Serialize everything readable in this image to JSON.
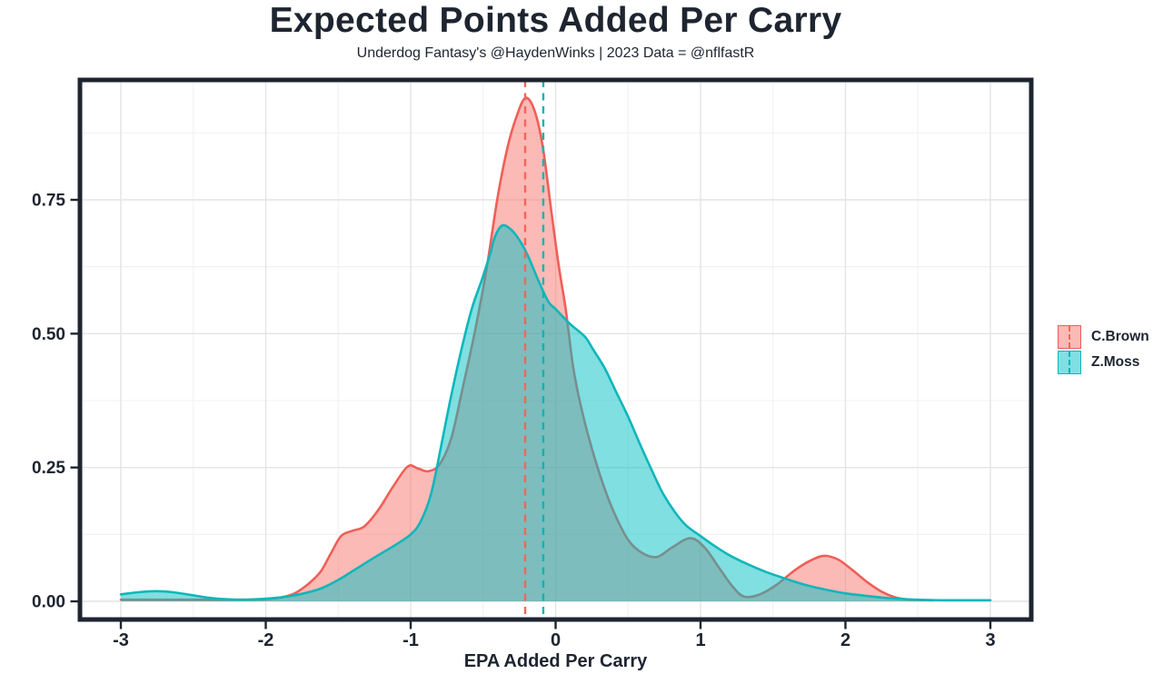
{
  "header": {
    "title": "Expected Points Added Per Carry",
    "subtitle": "Underdog Fantasy's @HaydenWinks | 2023 Data = @nflfastR"
  },
  "chart_data": {
    "type": "area",
    "subtype": "density",
    "title": "Expected Points Added Per Carry",
    "subtitle": "Underdog Fantasy's @HaydenWinks | 2023 Data = @nflfastR",
    "xlabel": "EPA Added Per Carry",
    "ylabel": "",
    "xlim": [
      -3.29,
      3.28
    ],
    "ylim": [
      -0.034,
      0.974
    ],
    "x_ticks": [
      -3,
      -2,
      -1,
      0,
      1,
      2,
      3
    ],
    "x_tick_labels": [
      "-3",
      "-2",
      "-1",
      "0",
      "1",
      "2",
      "3"
    ],
    "x_minor_ticks": [
      -2.5,
      -1.5,
      -0.5,
      0.5,
      1.5,
      2.5
    ],
    "y_ticks": [
      0,
      0.25,
      0.5,
      0.75
    ],
    "y_tick_labels": [
      "0.00",
      "0.25",
      "0.50",
      "0.75"
    ],
    "y_minor_ticks": [
      0.125,
      0.375,
      0.625,
      0.875
    ],
    "grid": true,
    "legend_position": "right",
    "series": [
      {
        "name": "C.Brown",
        "stroke": "#ef5f58",
        "fill": "rgba(248,118,109,0.5)",
        "legend_fill": "#fbbab6",
        "mean_line": {
          "x": -0.21,
          "color": "#f4655d"
        },
        "points": [
          [
            -3.0,
            0.003
          ],
          [
            -2.7,
            0.003
          ],
          [
            -2.4,
            0.003
          ],
          [
            -2.15,
            0.003
          ],
          [
            -2.0,
            0.004
          ],
          [
            -1.9,
            0.007
          ],
          [
            -1.8,
            0.015
          ],
          [
            -1.7,
            0.034
          ],
          [
            -1.62,
            0.056
          ],
          [
            -1.55,
            0.09
          ],
          [
            -1.48,
            0.122
          ],
          [
            -1.4,
            0.132
          ],
          [
            -1.32,
            0.14
          ],
          [
            -1.22,
            0.172
          ],
          [
            -1.12,
            0.215
          ],
          [
            -1.02,
            0.252
          ],
          [
            -0.95,
            0.248
          ],
          [
            -0.88,
            0.243
          ],
          [
            -0.8,
            0.256
          ],
          [
            -0.72,
            0.305
          ],
          [
            -0.64,
            0.4
          ],
          [
            -0.56,
            0.5
          ],
          [
            -0.48,
            0.615
          ],
          [
            -0.4,
            0.755
          ],
          [
            -0.33,
            0.85
          ],
          [
            -0.27,
            0.905
          ],
          [
            -0.21,
            0.94
          ],
          [
            -0.15,
            0.92
          ],
          [
            -0.09,
            0.852
          ],
          [
            -0.03,
            0.73
          ],
          [
            0.02,
            0.63
          ],
          [
            0.07,
            0.545
          ],
          [
            0.12,
            0.44
          ],
          [
            0.17,
            0.37
          ],
          [
            0.24,
            0.295
          ],
          [
            0.32,
            0.225
          ],
          [
            0.4,
            0.168
          ],
          [
            0.5,
            0.115
          ],
          [
            0.6,
            0.09
          ],
          [
            0.7,
            0.083
          ],
          [
            0.8,
            0.1
          ],
          [
            0.93,
            0.118
          ],
          [
            1.03,
            0.1
          ],
          [
            1.13,
            0.062
          ],
          [
            1.22,
            0.028
          ],
          [
            1.3,
            0.009
          ],
          [
            1.4,
            0.012
          ],
          [
            1.52,
            0.03
          ],
          [
            1.65,
            0.058
          ],
          [
            1.75,
            0.075
          ],
          [
            1.85,
            0.085
          ],
          [
            1.95,
            0.078
          ],
          [
            2.05,
            0.058
          ],
          [
            2.15,
            0.036
          ],
          [
            2.25,
            0.018
          ],
          [
            2.35,
            0.007
          ],
          [
            2.45,
            0.003
          ],
          [
            2.6,
            0.002
          ]
        ]
      },
      {
        "name": "Z.Moss",
        "stroke": "#0fb6ba",
        "fill": "rgba(0,191,196,0.5)",
        "legend_fill": "#80dfe2",
        "mean_line": {
          "x": -0.085,
          "color": "#0db3b5"
        },
        "points": [
          [
            -3.0,
            0.013
          ],
          [
            -2.88,
            0.017
          ],
          [
            -2.76,
            0.019
          ],
          [
            -2.64,
            0.017
          ],
          [
            -2.52,
            0.012
          ],
          [
            -2.4,
            0.007
          ],
          [
            -2.28,
            0.004
          ],
          [
            -2.15,
            0.003
          ],
          [
            -2.0,
            0.005
          ],
          [
            -1.88,
            0.008
          ],
          [
            -1.75,
            0.014
          ],
          [
            -1.62,
            0.024
          ],
          [
            -1.5,
            0.04
          ],
          [
            -1.38,
            0.06
          ],
          [
            -1.25,
            0.082
          ],
          [
            -1.12,
            0.103
          ],
          [
            -1.0,
            0.125
          ],
          [
            -0.93,
            0.15
          ],
          [
            -0.86,
            0.2
          ],
          [
            -0.79,
            0.29
          ],
          [
            -0.72,
            0.385
          ],
          [
            -0.65,
            0.47
          ],
          [
            -0.58,
            0.545
          ],
          [
            -0.51,
            0.6
          ],
          [
            -0.45,
            0.65
          ],
          [
            -0.42,
            0.68
          ],
          [
            -0.37,
            0.702
          ],
          [
            -0.31,
            0.695
          ],
          [
            -0.25,
            0.675
          ],
          [
            -0.19,
            0.645
          ],
          [
            -0.12,
            0.6
          ],
          [
            -0.05,
            0.56
          ],
          [
            0.0,
            0.546
          ],
          [
            0.1,
            0.518
          ],
          [
            0.2,
            0.495
          ],
          [
            0.26,
            0.47
          ],
          [
            0.34,
            0.435
          ],
          [
            0.42,
            0.39
          ],
          [
            0.5,
            0.345
          ],
          [
            0.58,
            0.295
          ],
          [
            0.66,
            0.247
          ],
          [
            0.74,
            0.202
          ],
          [
            0.82,
            0.168
          ],
          [
            0.9,
            0.142
          ],
          [
            1.0,
            0.122
          ],
          [
            1.1,
            0.103
          ],
          [
            1.2,
            0.086
          ],
          [
            1.32,
            0.07
          ],
          [
            1.45,
            0.055
          ],
          [
            1.58,
            0.043
          ],
          [
            1.72,
            0.031
          ],
          [
            1.86,
            0.022
          ],
          [
            2.0,
            0.015
          ],
          [
            2.15,
            0.01
          ],
          [
            2.3,
            0.006
          ],
          [
            2.5,
            0.003
          ],
          [
            2.7,
            0.002
          ],
          [
            3.0,
            0.002
          ]
        ]
      }
    ]
  },
  "colors": {
    "text": "#1e2530",
    "panel_border": "#1e2530",
    "grid_major": "#e4e4e4",
    "grid_minor": "#f1f1f1",
    "background": "#ffffff"
  }
}
